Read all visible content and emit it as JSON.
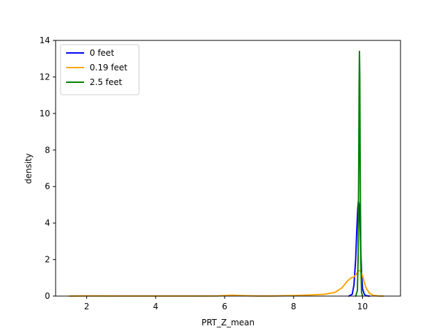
{
  "chart_data": {
    "type": "line",
    "title": "",
    "xlabel": "PRT_Z_mean",
    "ylabel": "density",
    "xlim": [
      1.1,
      11.1
    ],
    "ylim": [
      0,
      14
    ],
    "x_ticks": [
      2,
      4,
      6,
      8,
      10
    ],
    "y_ticks": [
      0,
      2,
      4,
      6,
      8,
      10,
      12,
      14
    ],
    "grid": false,
    "legend_position": "upper-left",
    "series": [
      {
        "name": "0 feet",
        "color": "#0000ff",
        "x": [
          9.6,
          9.7,
          9.75,
          9.8,
          9.83,
          9.86,
          9.88,
          9.9,
          9.92,
          9.94,
          9.97,
          10.0,
          10.05,
          10.1,
          10.2
        ],
        "y": [
          0,
          0.1,
          0.6,
          2.0,
          3.5,
          4.8,
          5.2,
          5.0,
          4.2,
          2.9,
          1.3,
          0.4,
          0.1,
          0.02,
          0
        ]
      },
      {
        "name": "0.19 feet",
        "color": "#ffa500",
        "x": [
          1.5,
          2.0,
          3.0,
          4.0,
          5.0,
          5.8,
          6.2,
          6.6,
          7.0,
          7.5,
          8.0,
          8.5,
          8.9,
          9.2,
          9.4,
          9.55,
          9.65,
          9.75,
          9.82,
          9.88,
          9.92,
          9.96,
          10.0,
          10.05,
          10.1,
          10.2,
          10.3,
          10.45,
          10.6
        ],
        "y": [
          0,
          0.01,
          0.005,
          0.005,
          0.005,
          0.01,
          0.05,
          0.02,
          0.005,
          0.01,
          0.03,
          0.06,
          0.1,
          0.2,
          0.45,
          0.8,
          0.98,
          1.05,
          1.2,
          1.38,
          1.4,
          1.3,
          1.1,
          0.75,
          0.45,
          0.15,
          0.05,
          0.01,
          0
        ]
      },
      {
        "name": "2.5 feet",
        "color": "#008000",
        "x": [
          9.8,
          9.85,
          9.87,
          9.89,
          9.9,
          9.91,
          9.92,
          9.93,
          9.95,
          9.97,
          10.0
        ],
        "y": [
          0,
          0.3,
          2.0,
          7.5,
          11.5,
          13.4,
          12.0,
          7.5,
          1.8,
          0.2,
          0
        ]
      }
    ]
  }
}
